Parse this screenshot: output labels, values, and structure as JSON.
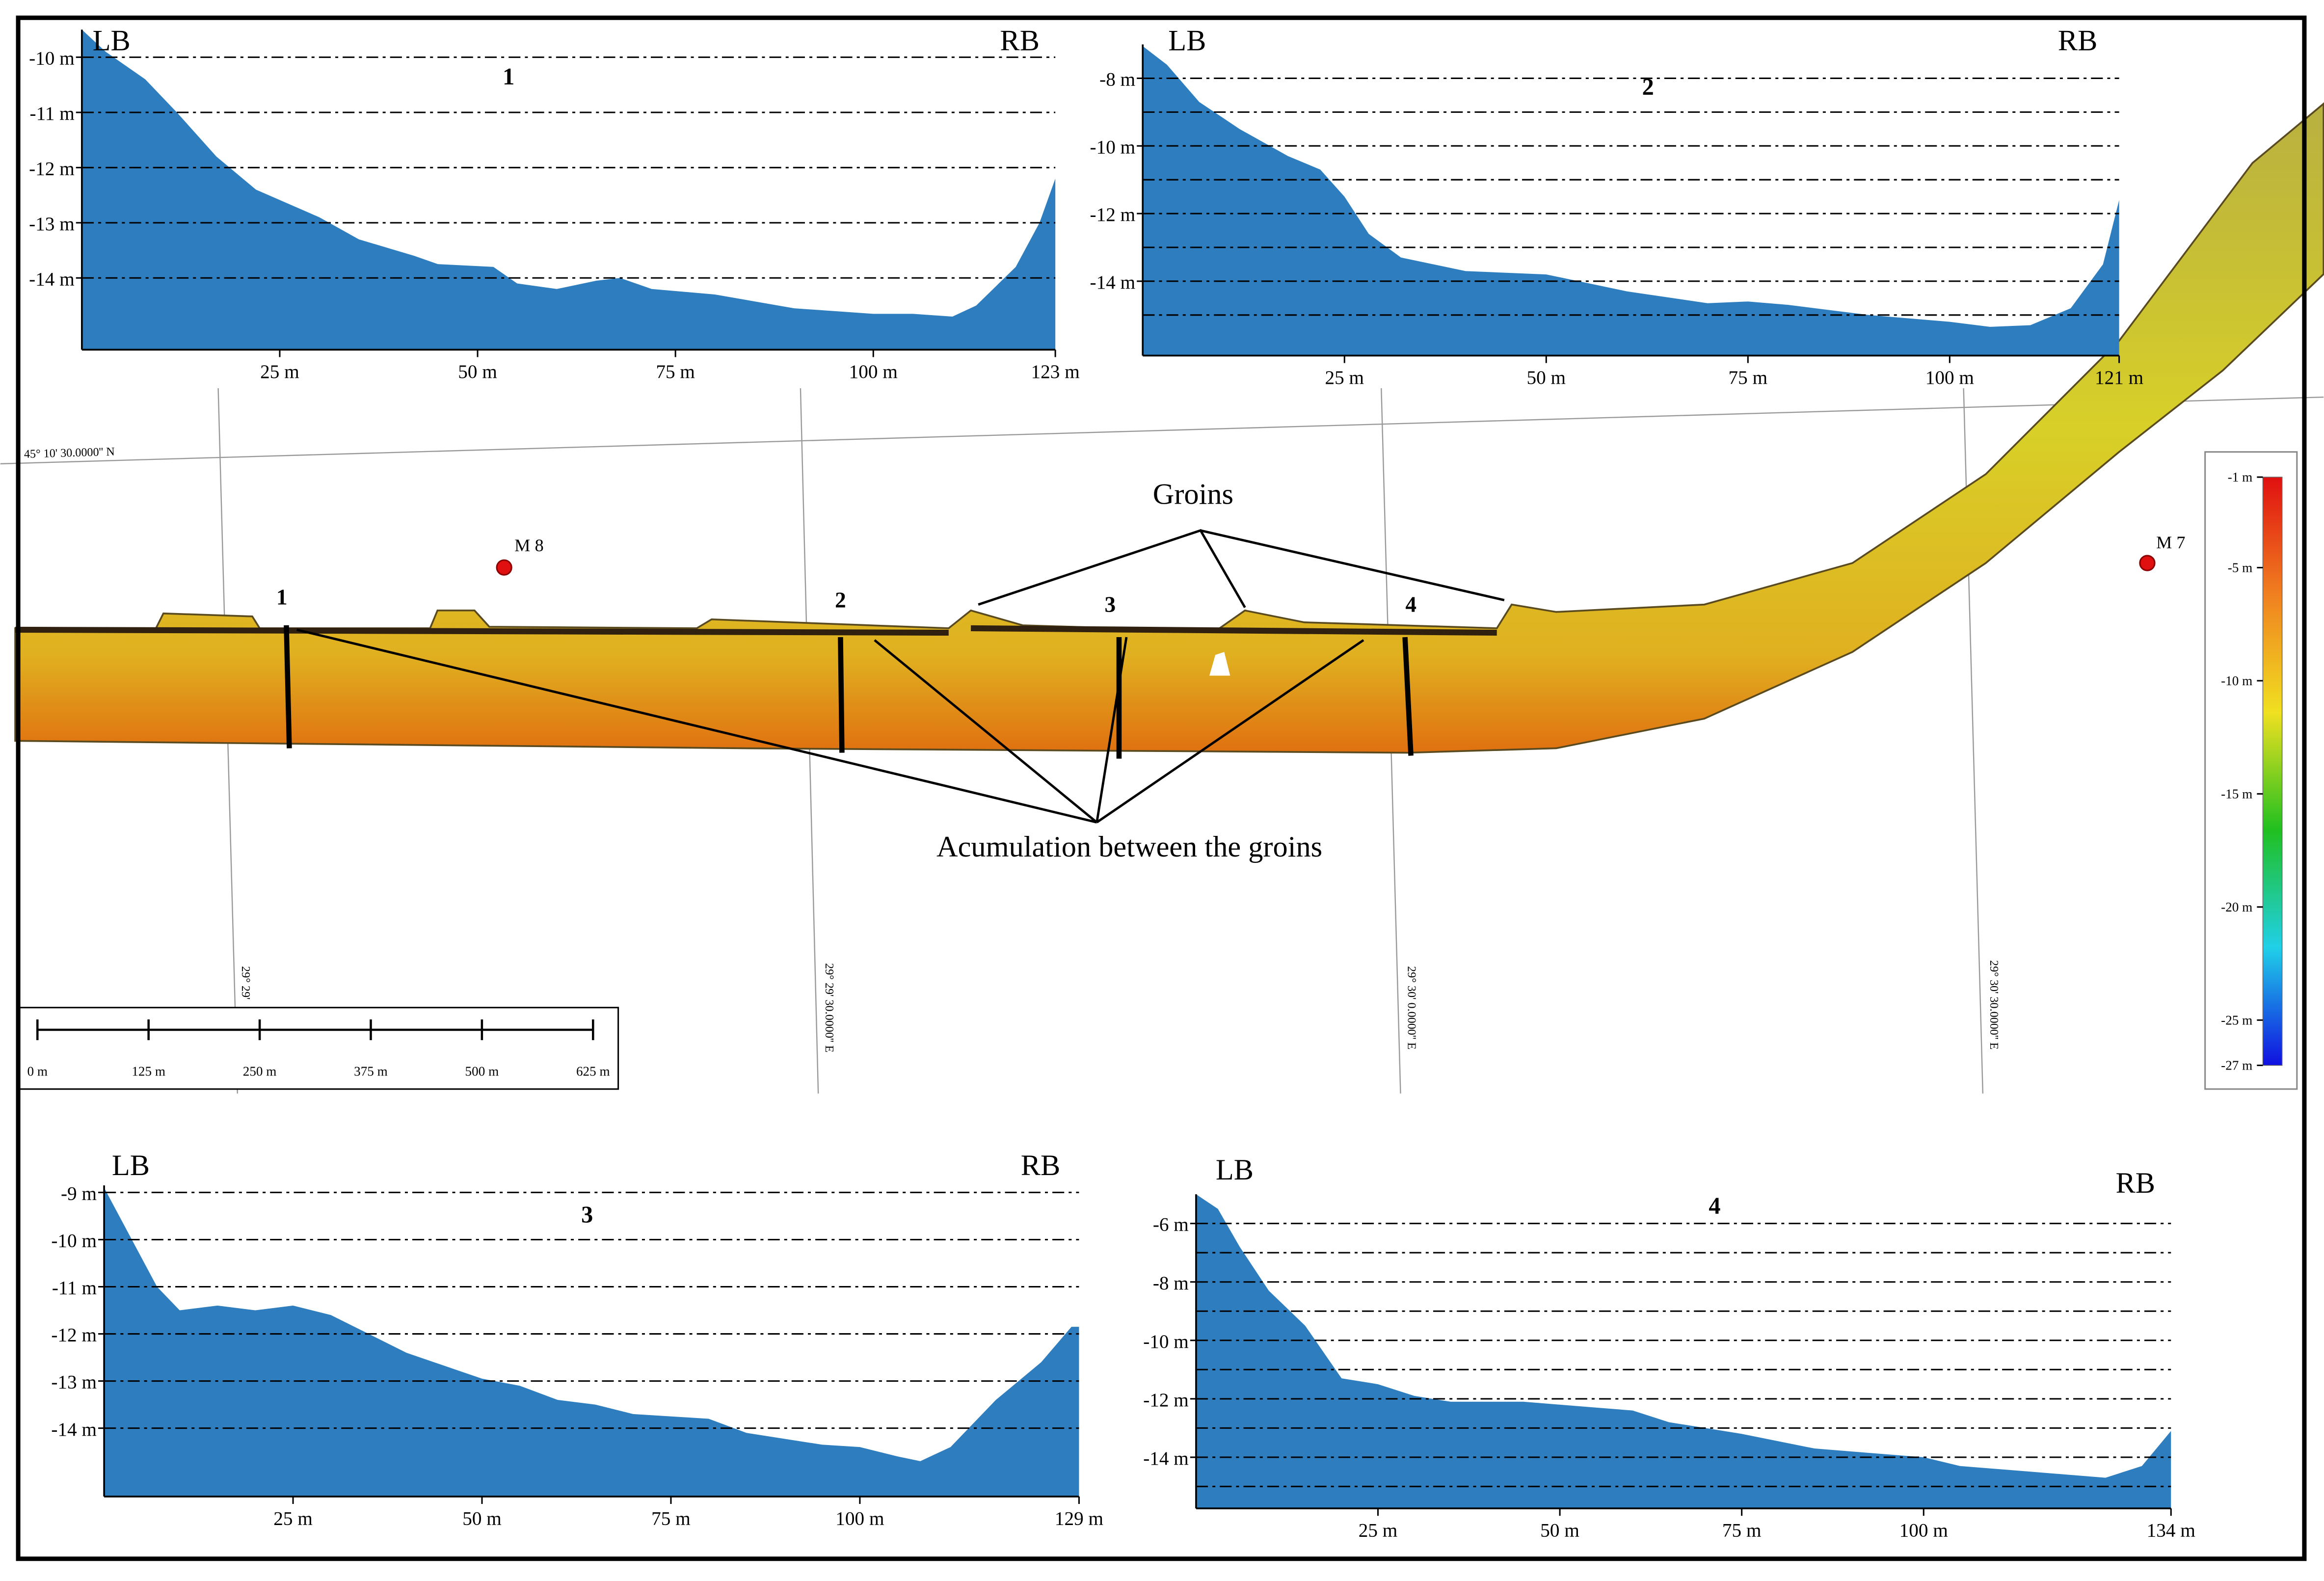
{
  "chart_data": [
    {
      "type": "area",
      "title": "1",
      "left_bank": "LB",
      "right_bank": "RB",
      "color": "#2e7ebf",
      "grid": true,
      "x": [
        0,
        3,
        8,
        12,
        17,
        22,
        30,
        35,
        42,
        45,
        52,
        55,
        60,
        65,
        68,
        72,
        80,
        90,
        100,
        105,
        110,
        113,
        118,
        121,
        123
      ],
      "values": [
        -9.5,
        -9.9,
        -10.4,
        -11.0,
        -11.8,
        -12.4,
        -12.9,
        -13.3,
        -13.6,
        -13.75,
        -13.8,
        -14.1,
        -14.2,
        -14.05,
        -14.0,
        -14.2,
        -14.3,
        -14.55,
        -14.65,
        -14.65,
        -14.7,
        -14.5,
        -13.8,
        -13.0,
        -12.2
      ],
      "xlim": [
        0,
        123
      ],
      "ylim": [
        -15.3,
        -9.5
      ],
      "xticks": [
        {
          "value": 25,
          "label": "25 m"
        },
        {
          "value": 50,
          "label": "50 m"
        },
        {
          "value": 75,
          "label": "75 m"
        },
        {
          "value": 100,
          "label": "100 m"
        },
        {
          "value": 123,
          "label": "123 m"
        }
      ],
      "yticks": [
        {
          "value": -10,
          "label": "-10 m"
        },
        {
          "value": -11,
          "label": "-11 m"
        },
        {
          "value": -12,
          "label": "-12 m"
        },
        {
          "value": -13,
          "label": "-13 m"
        },
        {
          "value": -14,
          "label": "-14 m"
        }
      ]
    },
    {
      "type": "area",
      "title": "2",
      "left_bank": "LB",
      "right_bank": "RB",
      "color": "#2e7ebf",
      "grid": true,
      "x": [
        0,
        3,
        7,
        12,
        18,
        22,
        25,
        28,
        32,
        40,
        50,
        60,
        70,
        75,
        80,
        90,
        100,
        105,
        110,
        115,
        119,
        121
      ],
      "values": [
        -7.05,
        -7.6,
        -8.7,
        -9.5,
        -10.3,
        -10.7,
        -11.5,
        -12.6,
        -13.3,
        -13.7,
        -13.8,
        -14.3,
        -14.65,
        -14.6,
        -14.7,
        -15.0,
        -15.2,
        -15.35,
        -15.3,
        -14.8,
        -13.5,
        -11.6
      ],
      "xlim": [
        0,
        121
      ],
      "ylim": [
        -16.2,
        -7.0
      ],
      "xticks": [
        {
          "value": 25,
          "label": "25 m"
        },
        {
          "value": 50,
          "label": "50 m"
        },
        {
          "value": 75,
          "label": "75 m"
        },
        {
          "value": 100,
          "label": "100 m"
        },
        {
          "value": 121,
          "label": "121 m"
        }
      ],
      "yticks": [
        {
          "value": -8,
          "label": "-8 m"
        },
        {
          "value": -10,
          "label": "-10 m"
        },
        {
          "value": -12,
          "label": "-12 m"
        },
        {
          "value": -14,
          "label": "-14 m"
        }
      ],
      "minor_yticks": [
        -9,
        -11,
        -13,
        -15
      ]
    },
    {
      "type": "area",
      "title": "3",
      "left_bank": "LB",
      "right_bank": "RB",
      "color": "#2e7ebf",
      "grid": true,
      "x": [
        0,
        3,
        7,
        10,
        15,
        20,
        25,
        30,
        35,
        40,
        50,
        55,
        60,
        65,
        70,
        80,
        85,
        95,
        100,
        105,
        108,
        112,
        118,
        124,
        128,
        129
      ],
      "values": [
        -8.9,
        -9.8,
        -11.0,
        -11.5,
        -11.4,
        -11.5,
        -11.4,
        -11.6,
        -12.0,
        -12.4,
        -12.95,
        -13.1,
        -13.4,
        -13.5,
        -13.7,
        -13.8,
        -14.1,
        -14.35,
        -14.4,
        -14.6,
        -14.7,
        -14.4,
        -13.4,
        -12.6,
        -11.85,
        -11.85
      ],
      "xlim": [
        0,
        129
      ],
      "ylim": [
        -15.45,
        -8.85
      ],
      "xticks": [
        {
          "value": 25,
          "label": "25 m"
        },
        {
          "value": 50,
          "label": "50 m"
        },
        {
          "value": 75,
          "label": "75 m"
        },
        {
          "value": 100,
          "label": "100 m"
        },
        {
          "value": 129,
          "label": "129 m"
        }
      ],
      "yticks": [
        {
          "value": -9,
          "label": "-9 m"
        },
        {
          "value": -10,
          "label": "-10 m"
        },
        {
          "value": -11,
          "label": "-11 m"
        },
        {
          "value": -12,
          "label": "-12 m"
        },
        {
          "value": -13,
          "label": "-13 m"
        },
        {
          "value": -14,
          "label": "-14 m"
        }
      ]
    },
    {
      "type": "area",
      "title": "4",
      "left_bank": "LB",
      "right_bank": "RB",
      "color": "#2e7ebf",
      "grid": true,
      "x": [
        0,
        3,
        6,
        10,
        15,
        20,
        25,
        30,
        35,
        45,
        55,
        60,
        65,
        75,
        85,
        95,
        100,
        105,
        115,
        125,
        130,
        134
      ],
      "values": [
        -5.0,
        -5.5,
        -6.8,
        -8.3,
        -9.5,
        -11.3,
        -11.5,
        -11.9,
        -12.1,
        -12.1,
        -12.3,
        -12.4,
        -12.8,
        -13.2,
        -13.7,
        -13.9,
        -14.0,
        -14.3,
        -14.5,
        -14.7,
        -14.3,
        -13.1
      ],
      "xlim": [
        0,
        134
      ],
      "ylim": [
        -15.75,
        -5.0
      ],
      "xticks": [
        {
          "value": 25,
          "label": "25 m"
        },
        {
          "value": 50,
          "label": "50 m"
        },
        {
          "value": 75,
          "label": "75 m"
        },
        {
          "value": 100,
          "label": "100 m"
        },
        {
          "value": 134,
          "label": "134 m"
        }
      ],
      "yticks": [
        {
          "value": -6,
          "label": "-6 m"
        },
        {
          "value": -8,
          "label": "-8 m"
        },
        {
          "value": -10,
          "label": "-10 m"
        },
        {
          "value": -12,
          "label": "-12 m"
        },
        {
          "value": -14,
          "label": "-14 m"
        }
      ],
      "minor_yticks": [
        -7,
        -9,
        -11,
        -13,
        -15
      ]
    }
  ],
  "map": {
    "parallel_label": "45° 10' 30.0000'' N",
    "meridian_labels": [
      "29° 29'",
      "29° 29' 30.0000'' E",
      "29° 30' 0.0000'' E",
      "29° 30' 30.0000'' E"
    ],
    "groins_label": "Groins",
    "accumulation_label": "Acumulation between the groins",
    "markers": [
      "M 8",
      "M 7"
    ],
    "profile_labels": [
      "1",
      "2",
      "3",
      "4"
    ],
    "colorbar": {
      "lim": [
        -27,
        -1
      ],
      "colors": [
        "#1010e0",
        "#20d0e8",
        "#20c020",
        "#f0e020",
        "#f08020",
        "#e01010"
      ],
      "ticks": [
        {
          "value": -1,
          "label": "-1 m"
        },
        {
          "value": -5,
          "label": "-5 m"
        },
        {
          "value": -10,
          "label": "-10 m"
        },
        {
          "value": -15,
          "label": "-15 m"
        },
        {
          "value": -20,
          "label": "-20 m"
        },
        {
          "value": -25,
          "label": "-25 m"
        },
        {
          "value": -27,
          "label": "-27 m"
        }
      ]
    },
    "scalebar": {
      "lim": [
        0,
        625
      ],
      "ticks": [
        {
          "value": 0,
          "label": "0 m"
        },
        {
          "value": 125,
          "label": "125 m"
        },
        {
          "value": 250,
          "label": "250 m"
        },
        {
          "value": 375,
          "label": "375 m"
        },
        {
          "value": 500,
          "label": "500 m"
        },
        {
          "value": 625,
          "label": "625 m"
        }
      ]
    }
  }
}
